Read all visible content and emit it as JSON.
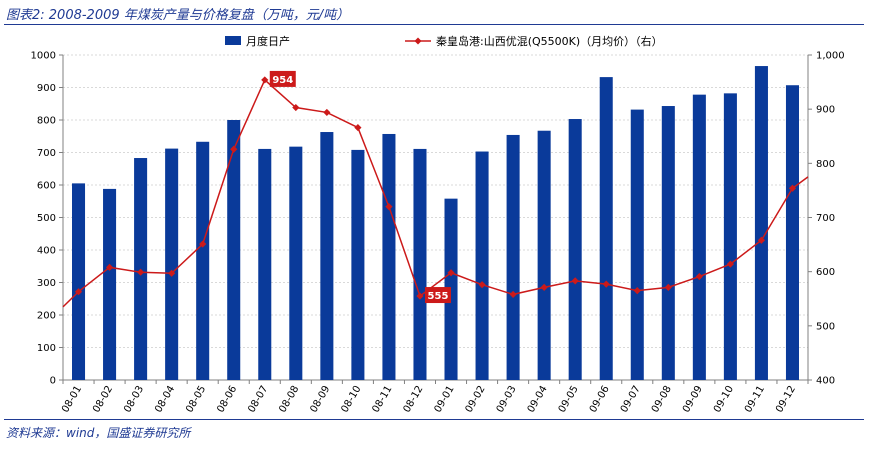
{
  "header": {
    "title": "图表2:  2008-2009 年煤炭产量与价格复盘（万吨，元/吨）"
  },
  "footer": {
    "source": "资料来源：wind，国盛证券研究所"
  },
  "chart_data": {
    "type": "bar+line",
    "categories": [
      "08-01",
      "08-02",
      "08-03",
      "08-04",
      "08-05",
      "08-06",
      "08-07",
      "08-08",
      "08-09",
      "08-10",
      "08-11",
      "08-12",
      "09-01",
      "09-02",
      "09-03",
      "09-04",
      "09-05",
      "09-06",
      "09-07",
      "09-08",
      "09-09",
      "09-10",
      "09-11",
      "09-12"
    ],
    "series": [
      {
        "name": "月度日产",
        "type": "bar",
        "axis": "left",
        "color": "#0a3a9a",
        "values": [
          605,
          588,
          683,
          712,
          733,
          800,
          711,
          718,
          763,
          708,
          757,
          711,
          558,
          703,
          754,
          767,
          803,
          932,
          832,
          843,
          878,
          882,
          966,
          907
        ]
      },
      {
        "name": "秦皇岛港:山西优混(Q5500K)（月均价）（右）",
        "type": "line",
        "axis": "right",
        "color": "#cc1a1a",
        "values": [
          563,
          608,
          599,
          597,
          651,
          826,
          954,
          903,
          894,
          866,
          720,
          555,
          598,
          576,
          558,
          571,
          583,
          577,
          565,
          571,
          591,
          614,
          658,
          754
        ]
      }
    ],
    "line_extension": {
      "left_edge_value": 535,
      "right_edge_value": 775
    },
    "data_labels": [
      {
        "category": "08-07",
        "text": "954"
      },
      {
        "category": "08-12",
        "text": "555"
      }
    ],
    "y_left": {
      "min": 0,
      "max": 1000,
      "step": 100,
      "tick_labels": [
        "0",
        "100",
        "200",
        "300",
        "400",
        "500",
        "600",
        "700",
        "800",
        "900",
        "1000"
      ]
    },
    "y_right": {
      "min": 400,
      "max": 1000,
      "step": 100,
      "tick_labels": [
        "400",
        "500",
        "600",
        "700",
        "800",
        "900",
        "1,000"
      ]
    },
    "grid": true,
    "legend_position": "top-center"
  }
}
